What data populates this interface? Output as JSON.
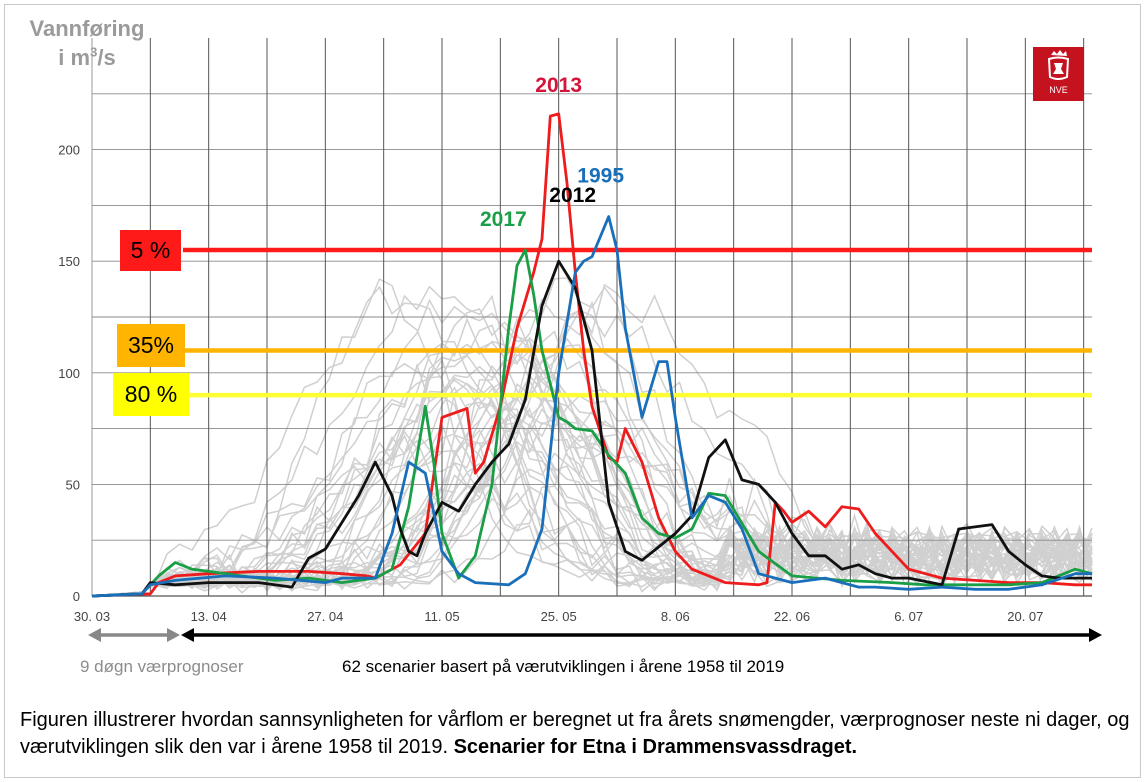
{
  "ylabel": {
    "line1": "Vannføring",
    "line2_prefix": "i m",
    "line2_sup": "3",
    "line2_suffix": "/s"
  },
  "logo": {
    "text": "NVE",
    "color": "#c4121f"
  },
  "thresholds": [
    {
      "label": "5 %",
      "value": 155,
      "color": "#ff1a1a",
      "box": "#ff1a1a"
    },
    {
      "label": "35%",
      "value": 110,
      "color": "#ffb400",
      "box": "#ffb400"
    },
    {
      "label": "80 %",
      "value": 90,
      "color": "#ffff33",
      "box": "#ffff00"
    }
  ],
  "period_labels": {
    "forecast": "9 døgn værprognoser",
    "scenarios": "62 scenarier basert på værutviklingen i årene 1958 til 2019"
  },
  "caption": {
    "normal": "Figuren illustrerer hvordan sannsynligheten for vårflom er beregnet ut fra årets snømengder, værprognoser neste ni dager, og værutviklingen slik den var i årene 1958 til 2019. ",
    "bold": "Scenarier for Etna i Drammensvassdraget."
  },
  "chart_data": {
    "type": "line",
    "title": "",
    "xlabel": "",
    "ylabel": "Vannføring i m³/s",
    "x_unit": "days since 30.03",
    "xlim": [
      0,
      120
    ],
    "ylim": [
      0,
      250
    ],
    "yticks": [
      0,
      50,
      100,
      150,
      200
    ],
    "xticks": [
      {
        "label": "30. 03",
        "x": 0
      },
      {
        "label": "13. 04",
        "x": 14
      },
      {
        "label": "27. 04",
        "x": 28
      },
      {
        "label": "11. 05",
        "x": 42
      },
      {
        "label": "25. 05",
        "x": 56
      },
      {
        "label": "8. 06",
        "x": 70
      },
      {
        "label": "22. 06",
        "x": 84
      },
      {
        "label": "6. 07",
        "x": 98
      },
      {
        "label": "20. 07",
        "x": 112
      }
    ],
    "forecast_days": 9,
    "background_scenarios": {
      "count": 62,
      "color": "#d0d0d0",
      "note": "grey lines, other years 1958-2019"
    },
    "series": [
      {
        "name": "2013",
        "color": "#ee1c1c",
        "label_color": "#d4143a",
        "x": [
          0,
          7,
          8,
          10,
          14,
          20,
          26,
          30,
          33,
          34,
          37,
          40,
          42,
          45,
          46,
          47,
          49,
          51,
          53,
          54,
          55,
          56,
          57,
          58,
          59,
          60,
          62,
          63,
          64,
          66,
          68,
          70,
          72,
          76,
          80,
          81,
          82,
          83,
          84,
          86,
          88,
          90,
          92,
          94,
          98,
          102,
          106,
          110,
          114,
          118,
          120
        ],
        "y": [
          0,
          1,
          6,
          9,
          10,
          11,
          11,
          10,
          9,
          8,
          14,
          28,
          80,
          84,
          55,
          60,
          85,
          120,
          145,
          160,
          215,
          216,
          185,
          145,
          110,
          85,
          62,
          60,
          75,
          60,
          35,
          20,
          12,
          6,
          5,
          6,
          42,
          38,
          33,
          38,
          31,
          40,
          39,
          28,
          12,
          8,
          7,
          6,
          6,
          5,
          5
        ]
      },
      {
        "name": "2017",
        "color": "#1a9e46",
        "label_color": "#1a9e46",
        "x": [
          0,
          6,
          7,
          8,
          10,
          12,
          14,
          18,
          22,
          26,
          30,
          34,
          36,
          38,
          40,
          41,
          42,
          44,
          46,
          48,
          50,
          51,
          52,
          53,
          54,
          55,
          56,
          57,
          58,
          60,
          62,
          64,
          66,
          68,
          70,
          72,
          74,
          76,
          80,
          84,
          90,
          96,
          100,
          106,
          110,
          114,
          118,
          120
        ],
        "y": [
          0,
          1,
          5,
          9,
          15,
          12,
          11,
          9,
          7,
          8,
          6,
          8,
          12,
          40,
          85,
          60,
          28,
          8,
          18,
          50,
          120,
          148,
          155,
          135,
          110,
          95,
          80,
          78,
          75,
          74,
          63,
          55,
          35,
          28,
          26,
          30,
          46,
          45,
          20,
          9,
          7,
          6,
          5,
          5,
          5,
          6,
          12,
          10
        ]
      },
      {
        "name": "2012",
        "color": "#111111",
        "label_color": "#000000",
        "x": [
          0,
          6,
          7,
          10,
          14,
          20,
          24,
          26,
          28,
          32,
          34,
          36,
          37,
          38,
          39,
          40,
          42,
          44,
          46,
          48,
          50,
          52,
          54,
          56,
          58,
          60,
          62,
          64,
          66,
          68,
          70,
          72,
          74,
          76,
          78,
          80,
          82,
          84,
          86,
          88,
          90,
          92,
          94,
          96,
          98,
          102,
          104,
          108,
          110,
          112,
          114,
          116,
          120
        ],
        "y": [
          0,
          1,
          6,
          5,
          6,
          6,
          4,
          17,
          21,
          45,
          60,
          45,
          30,
          20,
          18,
          28,
          42,
          38,
          50,
          60,
          68,
          88,
          130,
          150,
          138,
          110,
          42,
          20,
          16,
          22,
          28,
          36,
          62,
          70,
          52,
          50,
          42,
          28,
          18,
          18,
          12,
          14,
          10,
          8,
          8,
          5,
          30,
          32,
          20,
          14,
          9,
          8,
          8
        ]
      },
      {
        "name": "1995",
        "color": "#1a6fba",
        "label_color": "#1a6fba",
        "x": [
          0,
          6,
          7,
          10,
          16,
          22,
          28,
          30,
          34,
          36,
          38,
          40,
          42,
          44,
          46,
          50,
          52,
          54,
          56,
          58,
          59,
          60,
          62,
          63,
          64,
          66,
          68,
          69,
          70,
          72,
          74,
          76,
          78,
          80,
          82,
          84,
          86,
          88,
          90,
          92,
          94,
          98,
          102,
          106,
          110,
          114,
          118,
          120
        ],
        "y": [
          0,
          1,
          5,
          7,
          9,
          8,
          6,
          8,
          8,
          28,
          60,
          55,
          20,
          10,
          6,
          5,
          10,
          30,
          100,
          145,
          150,
          152,
          170,
          155,
          120,
          80,
          105,
          105,
          80,
          35,
          45,
          42,
          30,
          10,
          8,
          6,
          7,
          8,
          6,
          4,
          4,
          3,
          4,
          3,
          3,
          5,
          10,
          10
        ]
      }
    ]
  }
}
